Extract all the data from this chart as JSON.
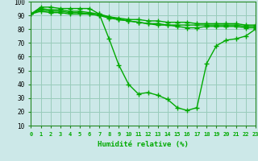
{
  "xlabel": "Humidité relative (%)",
  "xlim": [
    0,
    23
  ],
  "ylim": [
    10,
    100
  ],
  "yticks": [
    10,
    20,
    30,
    40,
    50,
    60,
    70,
    80,
    90,
    100
  ],
  "xticks": [
    0,
    1,
    2,
    3,
    4,
    5,
    6,
    7,
    8,
    9,
    10,
    11,
    12,
    13,
    14,
    15,
    16,
    17,
    18,
    19,
    20,
    21,
    22,
    23
  ],
  "background_color": "#cce8e8",
  "grid_color": "#99ccbb",
  "line_color": "#00aa00",
  "markersize": 2.5,
  "linewidth": 1.0,
  "series": [
    [
      91,
      96,
      96,
      95,
      95,
      95,
      95,
      91,
      73,
      54,
      40,
      33,
      34,
      32,
      29,
      23,
      21,
      23,
      55,
      68,
      72,
      73,
      75,
      80
    ],
    [
      91,
      95,
      94,
      94,
      93,
      93,
      92,
      91,
      89,
      87,
      86,
      85,
      84,
      83,
      83,
      82,
      81,
      81,
      82,
      82,
      82,
      82,
      81,
      81
    ],
    [
      91,
      94,
      93,
      93,
      92,
      92,
      91,
      90,
      88,
      87,
      86,
      85,
      84,
      84,
      83,
      83,
      83,
      83,
      83,
      83,
      83,
      83,
      82,
      82
    ],
    [
      91,
      93,
      92,
      92,
      91,
      91,
      91,
      90,
      89,
      88,
      87,
      87,
      86,
      86,
      85,
      85,
      85,
      84,
      84,
      84,
      84,
      84,
      83,
      83
    ]
  ]
}
